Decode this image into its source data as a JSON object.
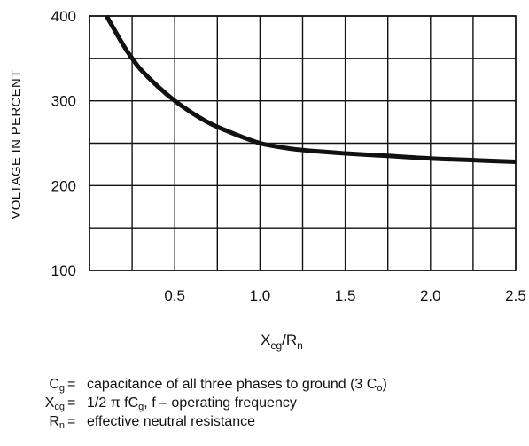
{
  "chart_data": {
    "type": "line",
    "title": "",
    "xlabel": "X_cg / R_n",
    "ylabel": "VOLTAGE IN PERCENT",
    "xlim": [
      0,
      2.5
    ],
    "ylim": [
      100,
      400
    ],
    "x_ticks": [
      "0.5",
      "1.0",
      "1.5",
      "2.0",
      "2.5"
    ],
    "y_ticks": [
      "100",
      "200",
      "300",
      "400"
    ],
    "grid": true,
    "series": [
      {
        "x": [
          0.1,
          0.2,
          0.25,
          0.3,
          0.4,
          0.5,
          0.6,
          0.7,
          0.8,
          0.9,
          1.0,
          1.1,
          1.2,
          1.3,
          1.5,
          1.75,
          2.0,
          2.25,
          2.5
        ],
        "y": [
          400,
          365,
          350,
          337,
          317,
          300,
          286,
          274,
          265,
          257,
          250,
          246,
          243,
          241,
          238,
          235,
          232,
          230,
          228
        ]
      }
    ]
  },
  "xlabel_parts": {
    "main": "X",
    "sub1": "cg",
    "slash": "/R",
    "sub2": "n"
  },
  "notes": [
    {
      "sym": "C",
      "sym_sub": "g",
      "eq": "=",
      "parts": [
        "capacitance of all three phases to ground (3 C",
        "o",
        ")"
      ]
    },
    {
      "sym": "X",
      "sym_sub": "cg",
      "eq": "=",
      "parts": [
        "1/2 π fC",
        "g",
        ",  f – operating frequency"
      ]
    },
    {
      "sym": "R",
      "sym_sub": "n",
      "eq": "=",
      "parts": [
        "effective neutral resistance"
      ]
    }
  ],
  "colors": {
    "line": "#111111",
    "grid": "#111111",
    "background": "#ffffff"
  }
}
